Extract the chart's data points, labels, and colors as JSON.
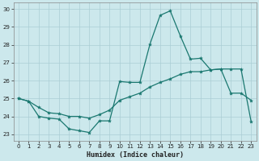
{
  "xlabel": "Humidex (Indice chaleur)",
  "background_color": "#cce8ec",
  "grid_color": "#aacdd4",
  "line_color": "#1a7870",
  "xlim": [
    -0.5,
    23.5
  ],
  "ylim": [
    22.65,
    30.35
  ],
  "yticks": [
    23,
    24,
    25,
    26,
    27,
    28,
    29,
    30
  ],
  "xticks": [
    0,
    1,
    2,
    3,
    4,
    5,
    6,
    7,
    8,
    9,
    10,
    11,
    12,
    13,
    14,
    15,
    16,
    17,
    18,
    19,
    20,
    21,
    22,
    23
  ],
  "line1_x": [
    0,
    1,
    2,
    3,
    4,
    5,
    6,
    7,
    8,
    9,
    10,
    11,
    12,
    13,
    14,
    15,
    16,
    17,
    18,
    19,
    20,
    21,
    22,
    23
  ],
  "line1_y": [
    25.0,
    24.85,
    24.0,
    23.9,
    23.85,
    23.3,
    23.2,
    23.1,
    23.75,
    23.75,
    25.95,
    25.9,
    25.9,
    28.05,
    29.65,
    29.9,
    28.5,
    27.2,
    27.25,
    26.6,
    26.65,
    25.3,
    25.3,
    24.9
  ],
  "line2_x": [
    0,
    1,
    2,
    3,
    4,
    5,
    6,
    7,
    8,
    9,
    10,
    11,
    12,
    13,
    14,
    15,
    16,
    17,
    18,
    19,
    20,
    21,
    22,
    23
  ],
  "line2_y": [
    25.0,
    24.85,
    24.5,
    24.2,
    24.15,
    24.0,
    24.0,
    23.9,
    24.1,
    24.35,
    24.9,
    25.1,
    25.3,
    25.65,
    25.9,
    26.1,
    26.35,
    26.5,
    26.5,
    26.6,
    26.65,
    26.65,
    26.65,
    23.7
  ]
}
